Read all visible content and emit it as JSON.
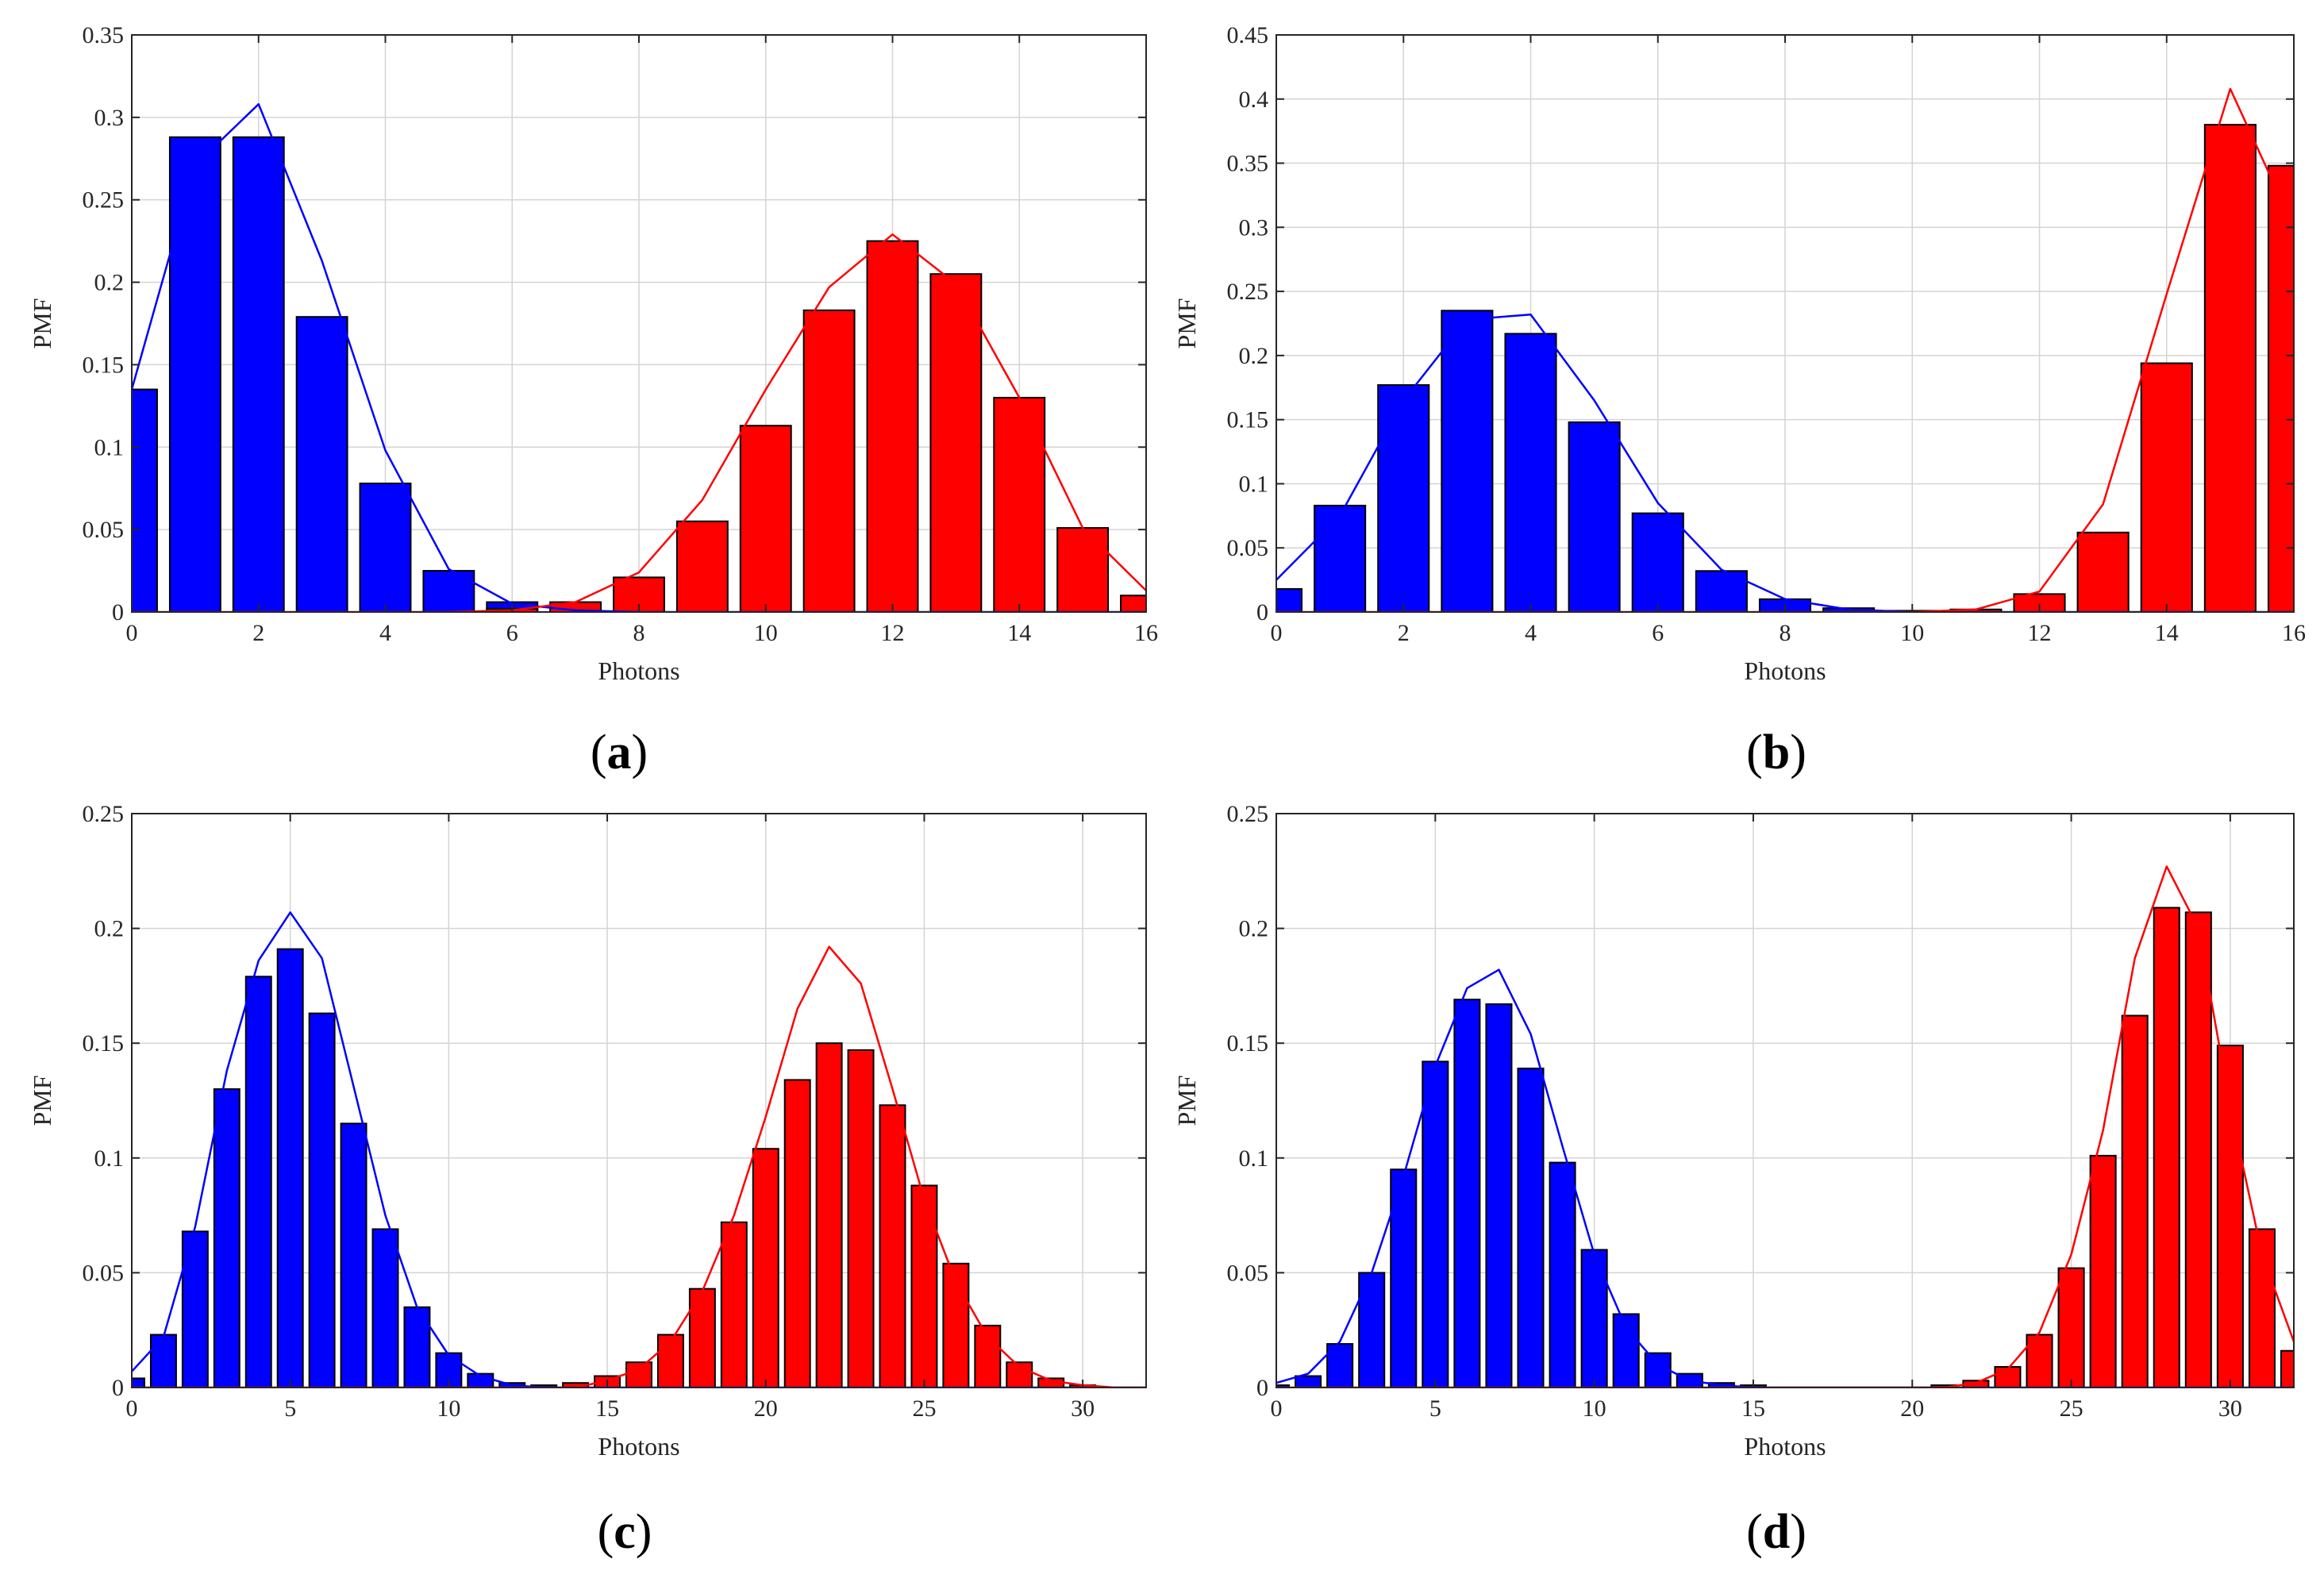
{
  "colors": {
    "blue": "#0000ff",
    "red": "#ff0000",
    "bar_edge": "#000000",
    "grid": "#d4d4d4",
    "axis": "#262626"
  },
  "chart_data": [
    {
      "panel": "a",
      "caption": "(a)",
      "type": "bar",
      "xlabel": "Photons",
      "ylabel": "PMF",
      "xlim": [
        0,
        16
      ],
      "ylim": [
        0,
        0.35
      ],
      "xticks": [
        0,
        2,
        4,
        6,
        8,
        10,
        12,
        14,
        16
      ],
      "xtick_labels": [
        "0",
        "2",
        "4",
        "6",
        "8",
        "10",
        "12",
        "14",
        "16"
      ],
      "yticks": [
        0,
        0.05,
        0.1,
        0.15,
        0.2,
        0.25,
        0.3,
        0.35
      ],
      "ytick_labels": [
        "0",
        "0.05",
        "0.1",
        "0.15",
        "0.2",
        "0.25",
        "0.3",
        "0.35"
      ],
      "grid": true,
      "series": [
        {
          "name": "blue",
          "kind": "bars",
          "x": [
            0,
            1,
            2,
            3,
            4,
            5,
            6,
            7,
            8,
            9,
            10,
            11,
            12,
            13,
            14,
            15,
            16
          ],
          "values": [
            0.135,
            0.288,
            0.288,
            0.179,
            0.078,
            0.025,
            0.006,
            0.001,
            0.0,
            0.0,
            0.0,
            0.0,
            0.0,
            0.0,
            0.0,
            0.0,
            0.0
          ]
        },
        {
          "name": "blue",
          "kind": "line",
          "x": [
            0,
            1,
            2,
            3,
            4,
            5,
            6,
            7,
            8,
            9,
            10,
            11,
            12,
            13,
            14,
            15,
            16
          ],
          "values": [
            0.135,
            0.271,
            0.308,
            0.213,
            0.098,
            0.026,
            0.005,
            0.001,
            0.0,
            0.0,
            0.0,
            0.0,
            0.0,
            0.0,
            0.0,
            0.0,
            0.0
          ]
        },
        {
          "name": "red",
          "kind": "bars",
          "x": [
            0,
            1,
            2,
            3,
            4,
            5,
            6,
            7,
            8,
            9,
            10,
            11,
            12,
            13,
            14,
            15,
            16
          ],
          "values": [
            0.0,
            0.0,
            0.0,
            0.0,
            0.0,
            0.0,
            0.002,
            0.006,
            0.021,
            0.055,
            0.113,
            0.183,
            0.225,
            0.205,
            0.13,
            0.051,
            0.01
          ]
        },
        {
          "name": "red",
          "kind": "line",
          "x": [
            0,
            1,
            2,
            3,
            4,
            5,
            6,
            7,
            8,
            9,
            10,
            11,
            12,
            13,
            14,
            15,
            16
          ],
          "values": [
            0.0,
            0.0,
            0.0,
            0.0,
            0.0,
            0.0,
            0.001,
            0.006,
            0.024,
            0.068,
            0.135,
            0.197,
            0.229,
            0.199,
            0.13,
            0.051,
            0.013
          ]
        }
      ]
    },
    {
      "panel": "b",
      "caption": "(b)",
      "type": "bar",
      "xlabel": "Photons",
      "ylabel": "PMF",
      "xlim": [
        0,
        16
      ],
      "ylim": [
        0,
        0.45
      ],
      "xticks": [
        0,
        2,
        4,
        6,
        8,
        10,
        12,
        14,
        16
      ],
      "xtick_labels": [
        "0",
        "2",
        "4",
        "6",
        "8",
        "10",
        "12",
        "14",
        "16"
      ],
      "yticks": [
        0,
        0.05,
        0.1,
        0.15,
        0.2,
        0.25,
        0.3,
        0.35,
        0.4,
        0.45
      ],
      "ytick_labels": [
        "0",
        "0.05",
        "0.1",
        "0.15",
        "0.2",
        "0.25",
        "0.3",
        "0.35",
        "0.4",
        "0.45"
      ],
      "grid": true,
      "series": [
        {
          "name": "blue",
          "kind": "bars",
          "x": [
            0,
            1,
            2,
            3,
            4,
            5,
            6,
            7,
            8,
            9,
            10,
            11,
            12,
            13,
            14,
            15,
            16
          ],
          "values": [
            0.018,
            0.083,
            0.177,
            0.235,
            0.217,
            0.148,
            0.077,
            0.032,
            0.01,
            0.003,
            0.001,
            0.0,
            0.0,
            0.0,
            0.0,
            0.0,
            0.0
          ]
        },
        {
          "name": "blue",
          "kind": "line",
          "x": [
            0,
            1,
            2,
            3,
            4,
            5,
            6,
            7,
            8,
            9,
            10,
            11,
            12,
            13,
            14,
            15,
            16
          ],
          "values": [
            0.025,
            0.075,
            0.165,
            0.228,
            0.232,
            0.165,
            0.085,
            0.033,
            0.01,
            0.002,
            0.0,
            0.0,
            0.0,
            0.0,
            0.0,
            0.0,
            0.0
          ]
        },
        {
          "name": "red",
          "kind": "bars",
          "x": [
            0,
            1,
            2,
            3,
            4,
            5,
            6,
            7,
            8,
            9,
            10,
            11,
            12,
            13,
            14,
            15,
            16
          ],
          "values": [
            0.0,
            0.0,
            0.0,
            0.0,
            0.0,
            0.0,
            0.0,
            0.0,
            0.0,
            0.0,
            0.0,
            0.002,
            0.014,
            0.062,
            0.194,
            0.38,
            0.348
          ]
        },
        {
          "name": "red",
          "kind": "line",
          "x": [
            0,
            1,
            2,
            3,
            4,
            5,
            6,
            7,
            8,
            9,
            10,
            11,
            12,
            13,
            14,
            15,
            16
          ],
          "values": [
            0.0,
            0.0,
            0.0,
            0.0,
            0.0,
            0.0,
            0.0,
            0.0,
            0.0,
            0.0,
            0.0,
            0.002,
            0.016,
            0.084,
            0.248,
            0.408,
            0.3
          ]
        }
      ]
    },
    {
      "panel": "c",
      "caption": "(c)",
      "type": "bar",
      "xlabel": "Photons",
      "ylabel": "PMF",
      "xlim": [
        0,
        32
      ],
      "ylim": [
        0,
        0.25
      ],
      "xticks": [
        0,
        5,
        10,
        15,
        20,
        25,
        30
      ],
      "xtick_labels": [
        "0",
        "5",
        "10",
        "15",
        "20",
        "25",
        "30"
      ],
      "yticks": [
        0,
        0.05,
        0.1,
        0.15,
        0.2,
        0.25
      ],
      "ytick_labels": [
        "0",
        "0.05",
        "0.1",
        "0.15",
        "0.2",
        "0.25"
      ],
      "grid": true,
      "series": [
        {
          "name": "blue",
          "kind": "bars",
          "x": [
            0,
            1,
            2,
            3,
            4,
            5,
            6,
            7,
            8,
            9,
            10,
            11,
            12,
            13,
            14,
            15,
            16,
            17,
            18,
            19,
            20,
            21,
            22,
            23,
            24,
            25,
            26,
            27,
            28,
            29,
            30,
            31,
            32
          ],
          "values": [
            0.004,
            0.023,
            0.068,
            0.13,
            0.179,
            0.191,
            0.163,
            0.115,
            0.069,
            0.035,
            0.015,
            0.006,
            0.002,
            0.001,
            0.0,
            0.0,
            0.0,
            0.0,
            0.0,
            0.0,
            0.0,
            0.0,
            0.0,
            0.0,
            0.0,
            0.0,
            0.0,
            0.0,
            0.0,
            0.0,
            0.0,
            0.0,
            0.0
          ]
        },
        {
          "name": "blue",
          "kind": "line",
          "x": [
            0,
            1,
            2,
            3,
            4,
            5,
            6,
            7,
            8,
            9,
            10,
            11,
            12,
            13,
            14,
            15,
            16,
            17,
            18,
            19,
            20,
            21,
            22,
            23,
            24,
            25,
            26,
            27,
            28,
            29,
            30,
            31,
            32
          ],
          "values": [
            0.007,
            0.022,
            0.07,
            0.138,
            0.186,
            0.207,
            0.187,
            0.131,
            0.075,
            0.035,
            0.014,
            0.005,
            0.001,
            0.0,
            0.0,
            0.0,
            0.0,
            0.0,
            0.0,
            0.0,
            0.0,
            0.0,
            0.0,
            0.0,
            0.0,
            0.0,
            0.0,
            0.0,
            0.0,
            0.0,
            0.0,
            0.0,
            0.0
          ]
        },
        {
          "name": "red",
          "kind": "bars",
          "x": [
            0,
            1,
            2,
            3,
            4,
            5,
            6,
            7,
            8,
            9,
            10,
            11,
            12,
            13,
            14,
            15,
            16,
            17,
            18,
            19,
            20,
            21,
            22,
            23,
            24,
            25,
            26,
            27,
            28,
            29,
            30,
            31,
            32
          ],
          "values": [
            0.0,
            0.0,
            0.0,
            0.0,
            0.0,
            0.0,
            0.0,
            0.0,
            0.0,
            0.0,
            0.0,
            0.0,
            0.0,
            0.0,
            0.002,
            0.005,
            0.011,
            0.023,
            0.043,
            0.072,
            0.104,
            0.134,
            0.15,
            0.147,
            0.123,
            0.088,
            0.054,
            0.027,
            0.011,
            0.004,
            0.001,
            0.0,
            0.0
          ]
        },
        {
          "name": "red",
          "kind": "line",
          "x": [
            0,
            1,
            2,
            3,
            4,
            5,
            6,
            7,
            8,
            9,
            10,
            11,
            12,
            13,
            14,
            15,
            16,
            17,
            18,
            19,
            20,
            21,
            22,
            23,
            24,
            25,
            26,
            27,
            28,
            29,
            30,
            31,
            32
          ],
          "values": [
            0.0,
            0.0,
            0.0,
            0.0,
            0.0,
            0.0,
            0.0,
            0.0,
            0.0,
            0.0,
            0.0,
            0.0,
            0.0,
            0.0,
            0.0,
            0.003,
            0.008,
            0.02,
            0.042,
            0.075,
            0.118,
            0.165,
            0.192,
            0.176,
            0.13,
            0.082,
            0.046,
            0.022,
            0.009,
            0.003,
            0.001,
            0.0,
            0.0
          ]
        }
      ]
    },
    {
      "panel": "d",
      "caption": "(d)",
      "type": "bar",
      "xlabel": "Photons",
      "ylabel": "PMF",
      "xlim": [
        0,
        32
      ],
      "ylim": [
        0,
        0.25
      ],
      "xticks": [
        0,
        5,
        10,
        15,
        20,
        25,
        30
      ],
      "xtick_labels": [
        "0",
        "5",
        "10",
        "15",
        "20",
        "25",
        "30"
      ],
      "yticks": [
        0,
        0.05,
        0.1,
        0.15,
        0.2,
        0.25
      ],
      "ytick_labels": [
        "0",
        "0.05",
        "0.1",
        "0.15",
        "0.2",
        "0.25"
      ],
      "grid": true,
      "series": [
        {
          "name": "blue",
          "kind": "bars",
          "x": [
            0,
            1,
            2,
            3,
            4,
            5,
            6,
            7,
            8,
            9,
            10,
            11,
            12,
            13,
            14,
            15,
            16,
            17,
            18,
            19,
            20,
            21,
            22,
            23,
            24,
            25,
            26,
            27,
            28,
            29,
            30,
            31,
            32
          ],
          "values": [
            0.001,
            0.005,
            0.019,
            0.05,
            0.095,
            0.142,
            0.169,
            0.167,
            0.139,
            0.098,
            0.06,
            0.032,
            0.015,
            0.006,
            0.002,
            0.001,
            0.0,
            0.0,
            0.0,
            0.0,
            0.0,
            0.0,
            0.0,
            0.0,
            0.0,
            0.0,
            0.0,
            0.0,
            0.0,
            0.0,
            0.0,
            0.0,
            0.0
          ]
        },
        {
          "name": "blue",
          "kind": "line",
          "x": [
            0,
            1,
            2,
            3,
            4,
            5,
            6,
            7,
            8,
            9,
            10,
            11,
            12,
            13,
            14,
            15,
            16,
            17,
            18,
            19,
            20,
            21,
            22,
            23,
            24,
            25,
            26,
            27,
            28,
            29,
            30,
            31,
            32
          ],
          "values": [
            0.002,
            0.006,
            0.02,
            0.05,
            0.092,
            0.14,
            0.174,
            0.182,
            0.154,
            0.105,
            0.058,
            0.026,
            0.01,
            0.003,
            0.001,
            0.0,
            0.0,
            0.0,
            0.0,
            0.0,
            0.0,
            0.0,
            0.0,
            0.0,
            0.0,
            0.0,
            0.0,
            0.0,
            0.0,
            0.0,
            0.0,
            0.0,
            0.0
          ]
        },
        {
          "name": "red",
          "kind": "bars",
          "x": [
            0,
            1,
            2,
            3,
            4,
            5,
            6,
            7,
            8,
            9,
            10,
            11,
            12,
            13,
            14,
            15,
            16,
            17,
            18,
            19,
            20,
            21,
            22,
            23,
            24,
            25,
            26,
            27,
            28,
            29,
            30,
            31,
            32
          ],
          "values": [
            0.0,
            0.0,
            0.0,
            0.0,
            0.0,
            0.0,
            0.0,
            0.0,
            0.0,
            0.0,
            0.0,
            0.0,
            0.0,
            0.0,
            0.0,
            0.0,
            0.0,
            0.0,
            0.0,
            0.0,
            0.0,
            0.001,
            0.003,
            0.009,
            0.023,
            0.052,
            0.101,
            0.162,
            0.209,
            0.207,
            0.149,
            0.069,
            0.016
          ]
        },
        {
          "name": "red",
          "kind": "line",
          "x": [
            0,
            1,
            2,
            3,
            4,
            5,
            6,
            7,
            8,
            9,
            10,
            11,
            12,
            13,
            14,
            15,
            16,
            17,
            18,
            19,
            20,
            21,
            22,
            23,
            24,
            25,
            26,
            27,
            28,
            29,
            30,
            31,
            32
          ],
          "values": [
            0.0,
            0.0,
            0.0,
            0.0,
            0.0,
            0.0,
            0.0,
            0.0,
            0.0,
            0.0,
            0.0,
            0.0,
            0.0,
            0.0,
            0.0,
            0.0,
            0.0,
            0.0,
            0.0,
            0.0,
            0.0,
            0.0,
            0.002,
            0.008,
            0.024,
            0.058,
            0.112,
            0.187,
            0.227,
            0.2,
            0.122,
            0.058,
            0.02
          ]
        }
      ]
    }
  ]
}
